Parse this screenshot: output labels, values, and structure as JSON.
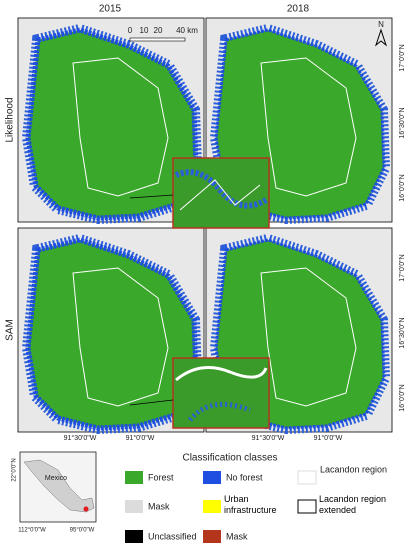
{
  "columns": {
    "left": "2015",
    "right": "2018"
  },
  "rows": {
    "top": "Likelihood",
    "bottom": "SAM"
  },
  "scale_bar": {
    "ticks": [
      "0",
      "10",
      "20",
      "40 km"
    ]
  },
  "north": "N",
  "latitudes": [
    "17°0'0\"N",
    "16°30'0\"N",
    "16°0'0\"N"
  ],
  "longitudes": [
    "91°30'0\"W",
    "91°0'0\"W"
  ],
  "inset": {
    "country": "Mexico",
    "lat": "22°0'0\"N",
    "lons": [
      "112°0'0\"W",
      "95°0'0\"W"
    ]
  },
  "legend": {
    "title": "Classification classes",
    "items": [
      "Forest",
      "No forest",
      "Lacandon region",
      "Mask",
      "Urban infrastructure",
      "Lacandon region extended",
      "Unclassified",
      "Mask"
    ]
  }
}
